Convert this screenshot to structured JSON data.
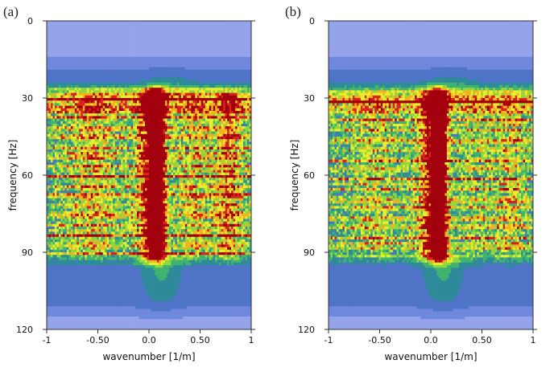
{
  "chart_data": [
    {
      "type": "heatmap",
      "panel_label": "(a)",
      "xlabel": "wavenumber [1/m]",
      "ylabel": "frequency [Hz]",
      "xlim": [
        -1,
        1
      ],
      "ylim": [
        120,
        0
      ],
      "x_ticks": [
        -1,
        -0.5,
        0,
        0.5,
        1
      ],
      "x_tick_labels": [
        "-1",
        "-0.50",
        "0.0",
        "0.50",
        "1"
      ],
      "y_ticks": [
        0,
        30,
        60,
        90,
        120
      ],
      "y_tick_labels": [
        "0",
        "30",
        "60",
        "90",
        "120"
      ],
      "colormap": [
        "#b7bff0",
        "#95a4ea",
        "#6f88dd",
        "#4f74c8",
        "#2f8a9a",
        "#3fb36f",
        "#8fd73f",
        "#e5ef2e",
        "#f3b321",
        "#d9231f",
        "#a3000e"
      ],
      "background_color": "#dadbfa",
      "energy_band_hz": [
        30,
        90
      ],
      "notes": "f-k amplitude spectrum; strongest energy near wavenumber 0.0-0.1 across 40-90 Hz"
    },
    {
      "type": "heatmap",
      "panel_label": "(b)",
      "xlabel": "wavenumber [1/m]",
      "ylabel": "frequency [Hz]",
      "xlim": [
        -1,
        1
      ],
      "ylim": [
        120,
        0
      ],
      "x_ticks": [
        -1,
        -0.5,
        0,
        0.5,
        1
      ],
      "x_tick_labels": [
        "-1",
        "-0.50",
        "0.0",
        "0.50",
        "1"
      ],
      "y_ticks": [
        0,
        30,
        60,
        90,
        120
      ],
      "y_tick_labels": [
        "0",
        "30",
        "60",
        "90",
        "120"
      ],
      "colormap": [
        "#b7bff0",
        "#95a4ea",
        "#6f88dd",
        "#4f74c8",
        "#2f8a9a",
        "#3fb36f",
        "#8fd73f",
        "#e5ef2e",
        "#f3b321",
        "#d9231f",
        "#a3000e"
      ],
      "background_color": "#dadbfa",
      "energy_band_hz": [
        30,
        90
      ],
      "notes": "filtered f-k amplitude spectrum; weaker side energy, concentrated near wavenumber 0.0-0.1"
    }
  ]
}
